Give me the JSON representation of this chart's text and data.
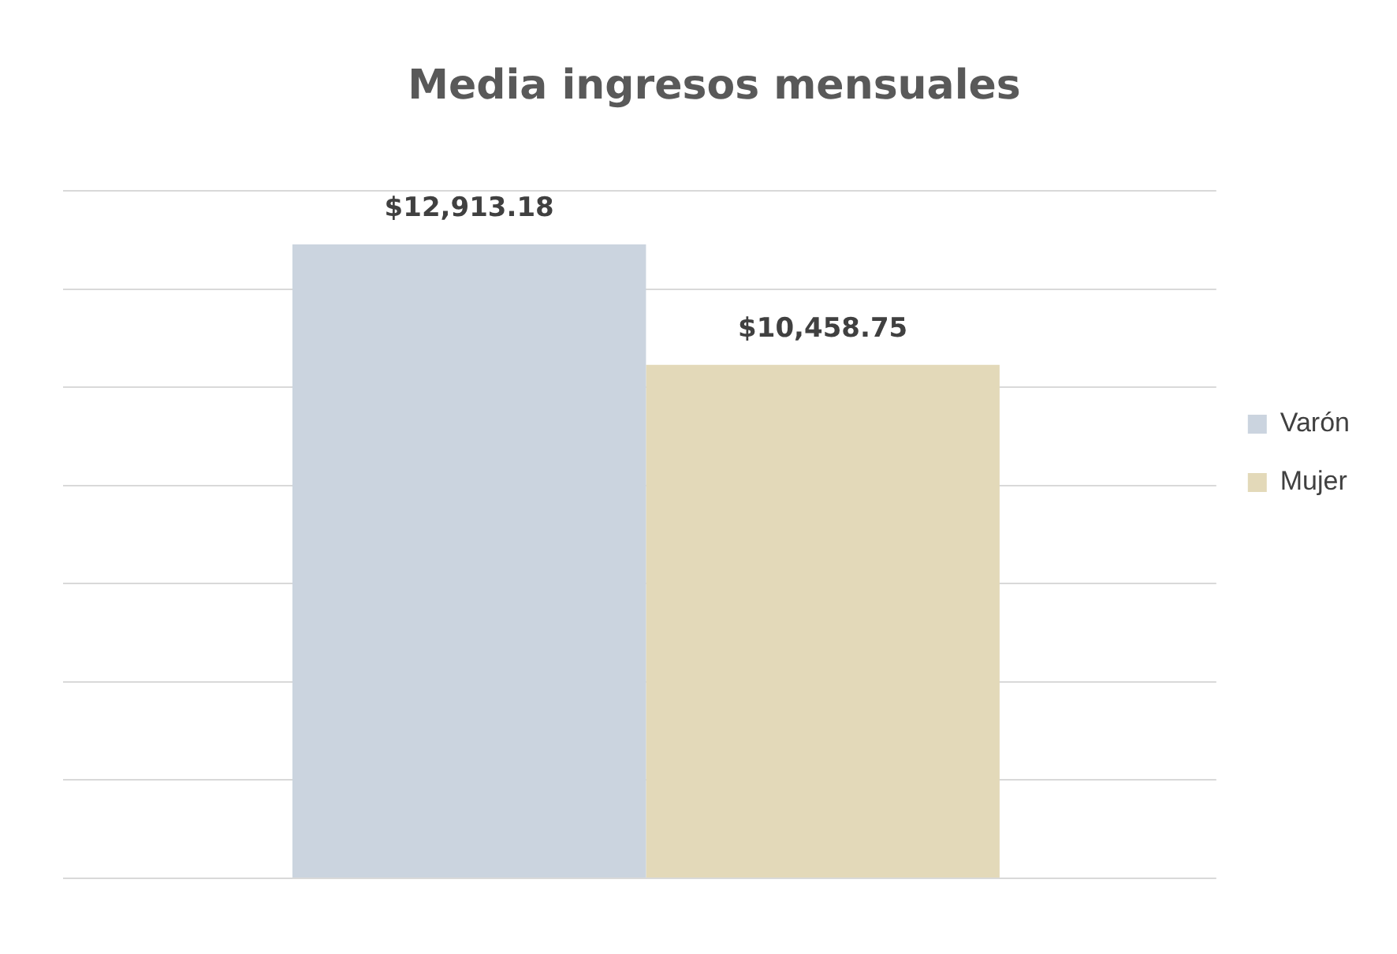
{
  "chart_data": {
    "type": "bar",
    "title": "Media ingresos mensuales",
    "categories": [
      null
    ],
    "series": [
      {
        "name": "Varón",
        "color": "#cbd4df",
        "values": [
          12913.18
        ],
        "value_labels": [
          "$12,913.18"
        ]
      },
      {
        "name": "Mujer",
        "color": "#e3d9b9",
        "values": [
          10458.75
        ],
        "value_labels": [
          "$10,458.75"
        ]
      }
    ],
    "grid": "y",
    "legend": "right",
    "tick_labels": false
  }
}
